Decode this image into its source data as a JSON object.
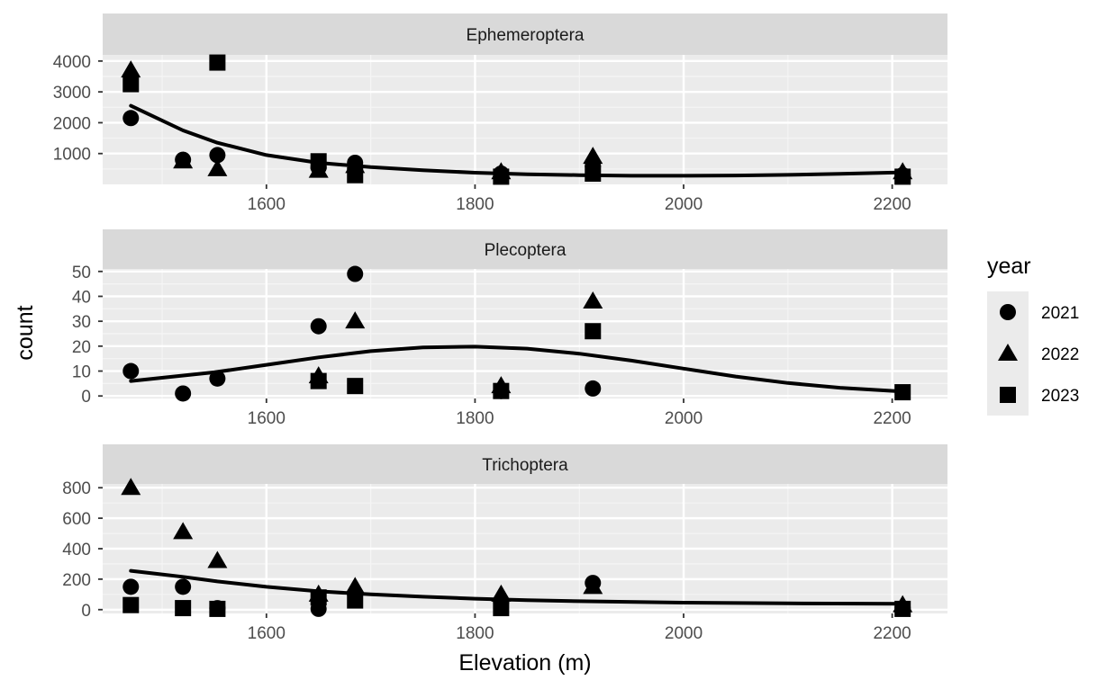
{
  "colors": {
    "panel_bg": "#EBEBEB",
    "strip_bg": "#D9D9D9",
    "grid_major": "#FFFFFF",
    "grid_minor": "#F5F5F5",
    "points": "#000000",
    "smooth_line": "#000000",
    "legend_bg": "#EBEBEB"
  },
  "chart_data": {
    "type": "scatter",
    "xlabel": "Elevation (m)",
    "ylabel": "count",
    "xlim": [
      1443,
      2253
    ],
    "x_ticks": [
      1600,
      1800,
      2000,
      2200
    ],
    "legend": {
      "title": "year",
      "placement": "right",
      "entries": [
        {
          "label": "2021",
          "shape": "circle"
        },
        {
          "label": "2022",
          "shape": "triangle"
        },
        {
          "label": "2023",
          "shape": "square"
        }
      ]
    },
    "facets": [
      {
        "label": "Ephemeroptera",
        "ylim": [
          0,
          4200
        ],
        "y_ticks": [
          1000,
          2000,
          3000,
          4000
        ],
        "series": [
          {
            "name": "2021",
            "x": [
              1470,
              1520,
              1553,
              1650,
              1685,
              1825,
              1913,
              2210
            ],
            "y": [
              2150,
              800,
              950,
              550,
              700,
              350,
              600,
              300
            ]
          },
          {
            "name": "2022",
            "x": [
              1470,
              1520,
              1553,
              1650,
              1685,
              1825,
              1913,
              2210
            ],
            "y": [
              3700,
              750,
              500,
              450,
              600,
              400,
              900,
              400
            ]
          },
          {
            "name": "2023",
            "x": [
              1470,
              1553,
              1650,
              1685,
              1825,
              1913,
              2210
            ],
            "y": [
              3250,
              3950,
              750,
              300,
              250,
              350,
              250
            ]
          }
        ],
        "smooth": {
          "x": [
            1470,
            1520,
            1553,
            1600,
            1650,
            1700,
            1750,
            1800,
            1850,
            1900,
            1950,
            2000,
            2050,
            2100,
            2150,
            2210
          ],
          "y": [
            2550,
            1750,
            1350,
            950,
            700,
            560,
            460,
            380,
            330,
            300,
            280,
            280,
            290,
            310,
            340,
            390
          ]
        }
      },
      {
        "label": "Plecoptera",
        "ylim": [
          -1,
          51
        ],
        "y_ticks": [
          0,
          10,
          20,
          30,
          40,
          50
        ],
        "series": [
          {
            "name": "2021",
            "x": [
              1470,
              1520,
              1553,
              1650,
              1685,
              1825,
              1913
            ],
            "y": [
              10,
              1,
              7,
              28,
              49,
              2,
              3
            ]
          },
          {
            "name": "2022",
            "x": [
              1650,
              1685,
              1825,
              1913
            ],
            "y": [
              8,
              30,
              4,
              38
            ]
          },
          {
            "name": "2023",
            "x": [
              1650,
              1685,
              1825,
              1913,
              2210
            ],
            "y": [
              6,
              4,
              2,
              26,
              1.5
            ]
          }
        ],
        "smooth": {
          "x": [
            1470,
            1550,
            1600,
            1650,
            1700,
            1750,
            1800,
            1850,
            1900,
            1950,
            2000,
            2050,
            2100,
            2150,
            2210
          ],
          "y": [
            6,
            9.5,
            12.5,
            15.5,
            18,
            19.5,
            19.8,
            19,
            17,
            14.2,
            11,
            7.8,
            5.2,
            3.3,
            1.8
          ]
        }
      },
      {
        "label": "Trichoptera",
        "ylim": [
          -25,
          825
        ],
        "y_ticks": [
          0,
          200,
          400,
          600,
          800
        ],
        "series": [
          {
            "name": "2021",
            "x": [
              1470,
              1520,
              1553,
              1650,
              1685,
              1825,
              1913,
              2210
            ],
            "y": [
              150,
              150,
              10,
              5,
              100,
              50,
              175,
              10
            ]
          },
          {
            "name": "2022",
            "x": [
              1470,
              1520,
              1553,
              1650,
              1685,
              1825,
              1913,
              2210
            ],
            "y": [
              800,
              510,
              320,
              100,
              150,
              100,
              150,
              30
            ]
          },
          {
            "name": "2023",
            "x": [
              1470,
              1520,
              1553,
              1650,
              1685,
              1825,
              2210
            ],
            "y": [
              30,
              10,
              5,
              80,
              60,
              10,
              5
            ]
          }
        ],
        "smooth": {
          "x": [
            1470,
            1520,
            1553,
            1600,
            1650,
            1700,
            1750,
            1800,
            1850,
            1900,
            2000,
            2100,
            2210
          ],
          "y": [
            255,
            215,
            185,
            150,
            120,
            100,
            85,
            72,
            62,
            55,
            46,
            41,
            38
          ]
        }
      }
    ]
  }
}
